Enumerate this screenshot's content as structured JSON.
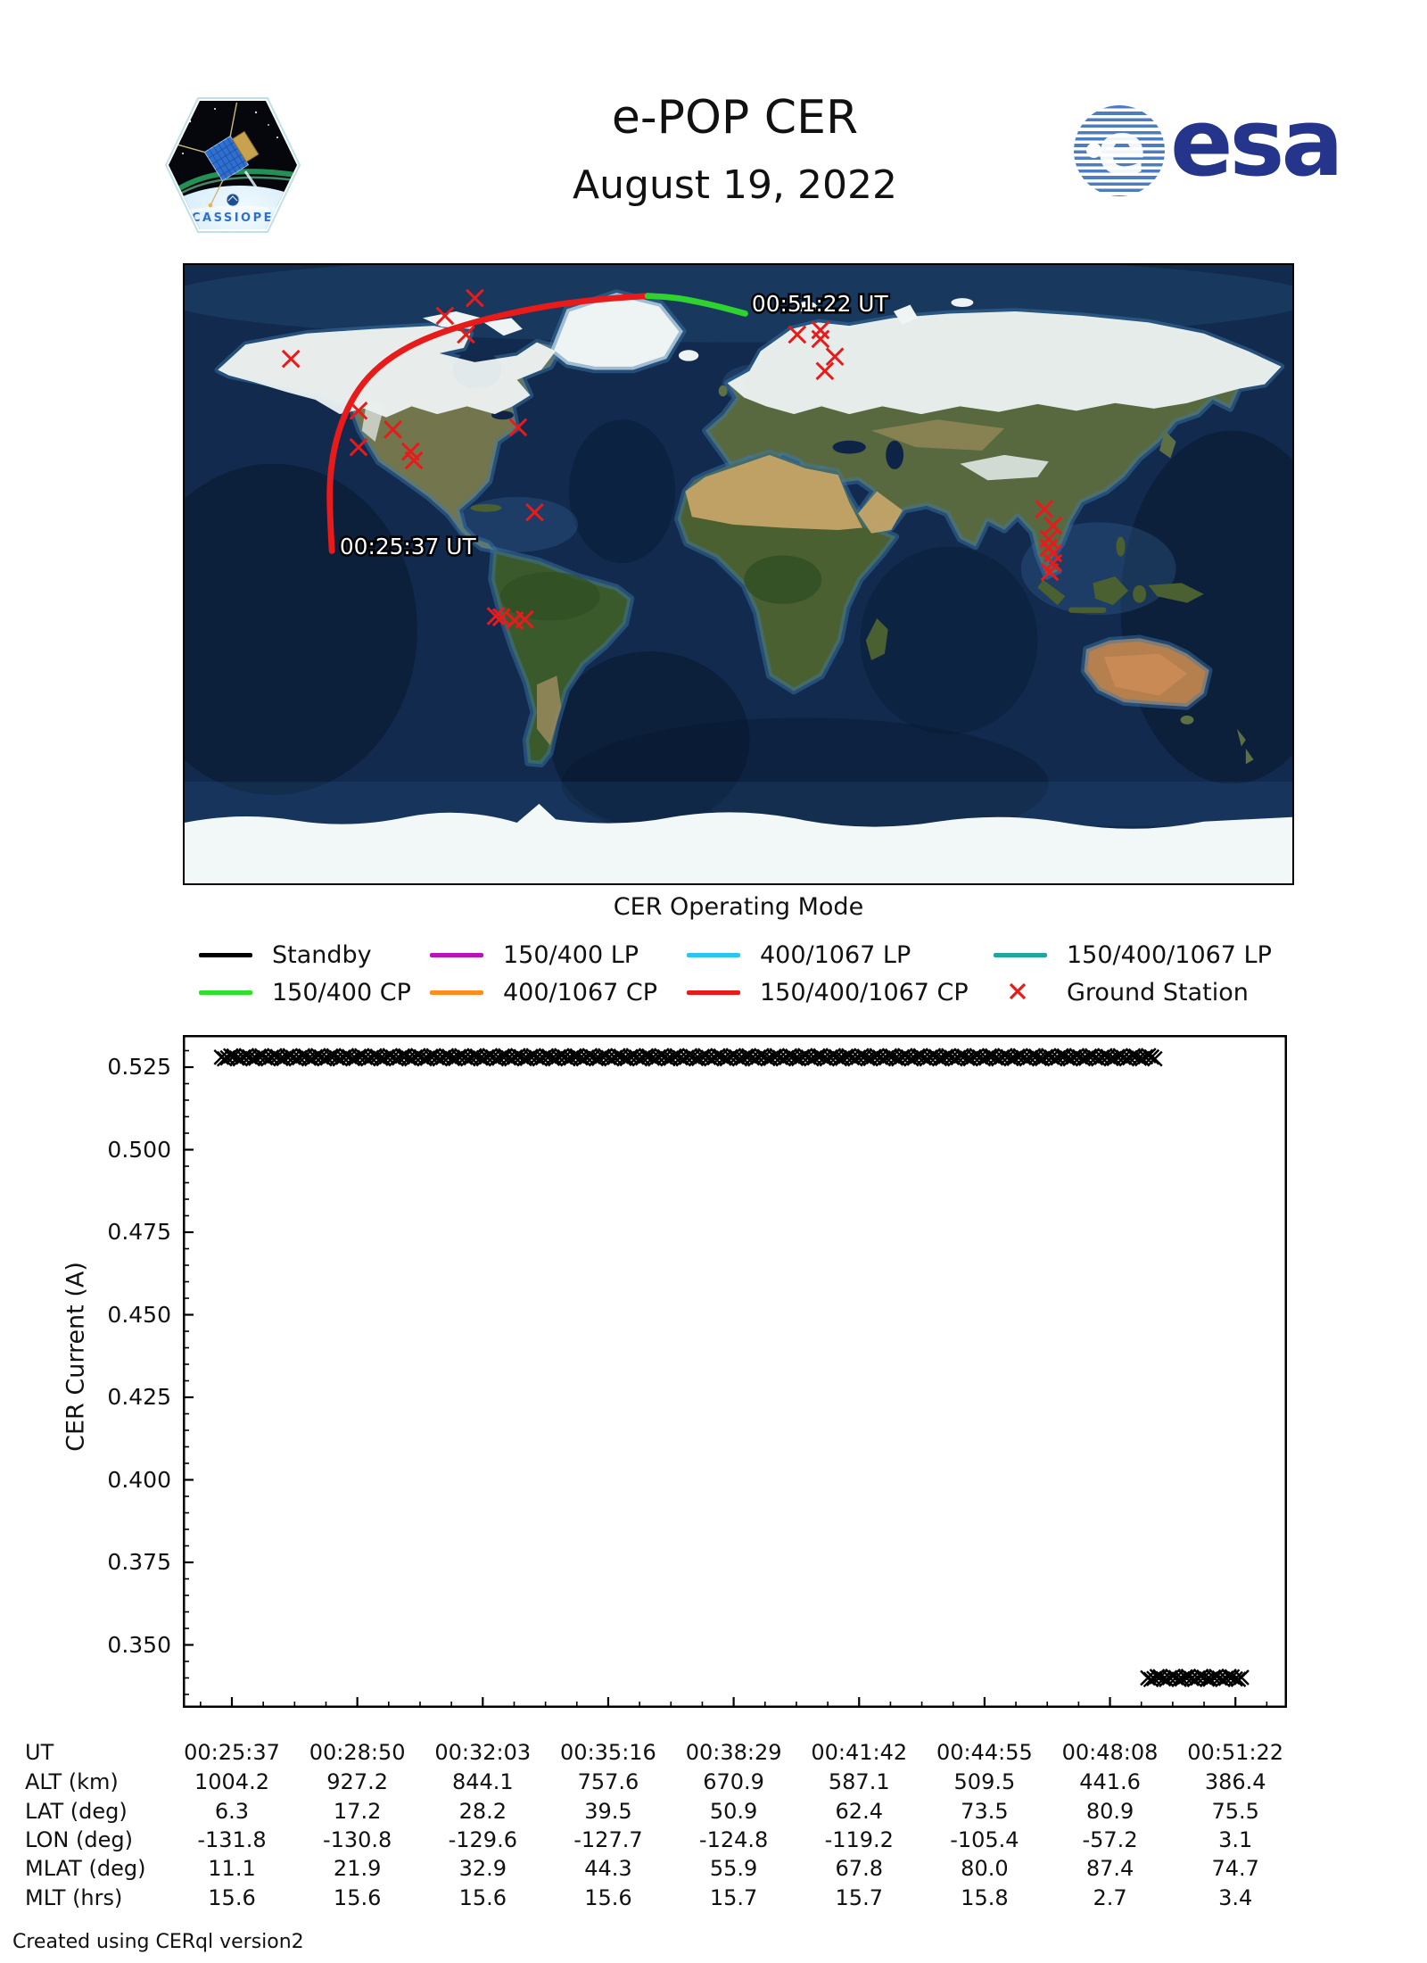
{
  "header": {
    "title": "e-POP CER",
    "date": "August 19, 2022",
    "esa_logo_text": "esa",
    "patch_text": "CASSIOPE"
  },
  "map": {
    "caption": "CER Operating Mode",
    "start_label": "00:25:37 UT",
    "end_label": "00:51:22 UT",
    "track_red_color": "#e81a1a",
    "track_green_color": "#2fd32f",
    "station_color": "#e81a1a",
    "track_red": [
      [
        133,
        259
      ],
      [
        131,
        225
      ],
      [
        131,
        192
      ],
      [
        136,
        160
      ],
      [
        146,
        131
      ],
      [
        161,
        106
      ],
      [
        182,
        86
      ],
      [
        209,
        70
      ],
      [
        243,
        57
      ],
      [
        283,
        46
      ],
      [
        327,
        37
      ],
      [
        373,
        31
      ],
      [
        418,
        28
      ]
    ],
    "track_green": [
      [
        418,
        28
      ],
      [
        440,
        29
      ],
      [
        462,
        33
      ],
      [
        484,
        38
      ],
      [
        506,
        44
      ]
    ],
    "start_label_anchor": [
      140,
      262
    ],
    "end_label_anchor": [
      512,
      42
    ],
    "ground_stations": [
      [
        96,
        85
      ],
      [
        157,
        132
      ],
      [
        188,
        149
      ],
      [
        157,
        165
      ],
      [
        204,
        169
      ],
      [
        207,
        177
      ],
      [
        301,
        147
      ],
      [
        316,
        224
      ],
      [
        281,
        318
      ],
      [
        286,
        319
      ],
      [
        298,
        322
      ],
      [
        307,
        321
      ],
      [
        262,
        30
      ],
      [
        235,
        46
      ],
      [
        254,
        63
      ],
      [
        553,
        63
      ],
      [
        574,
        59
      ],
      [
        574,
        67
      ],
      [
        587,
        83
      ],
      [
        578,
        96
      ],
      [
        776,
        221
      ],
      [
        784,
        236
      ],
      [
        780,
        248
      ],
      [
        780,
        256
      ],
      [
        784,
        261
      ],
      [
        784,
        270
      ],
      [
        781,
        278
      ]
    ]
  },
  "legend": {
    "items": [
      {
        "label": "Standby",
        "color": "#000000",
        "type": "line"
      },
      {
        "label": "150/400 LP",
        "color": "#b913b9",
        "type": "line"
      },
      {
        "label": "400/1067 LP",
        "color": "#29c6f0",
        "type": "line"
      },
      {
        "label": "150/400/1067 LP",
        "color": "#20a5a0",
        "type": "line"
      },
      {
        "label": "150/400 CP",
        "color": "#2ce02c",
        "type": "line"
      },
      {
        "label": "400/1067 CP",
        "color": "#ff8c1f",
        "type": "line"
      },
      {
        "label": "150/400/1067 CP",
        "color": "#e81a1a",
        "type": "line"
      },
      {
        "label": "Ground Station",
        "color": "#e81a1a",
        "type": "x"
      }
    ]
  },
  "chart_data": {
    "type": "scatter",
    "marker": "x",
    "marker_color": "#000000",
    "title": "",
    "xlabel": "",
    "ylabel": "CER Current (A)",
    "ylim": [
      0.331,
      0.5347
    ],
    "yticks": [
      0.35,
      0.375,
      0.4,
      0.425,
      0.45,
      0.475,
      0.5,
      0.525
    ],
    "ytick_labels": [
      "0.350",
      "0.375",
      "0.400",
      "0.425",
      "0.450",
      "0.475",
      "0.500",
      "0.525"
    ],
    "x_start": "00:25:37",
    "x_end": "00:51:22",
    "xticks": [
      "00:25:37",
      "00:28:50",
      "00:32:03",
      "00:35:16",
      "00:38:29",
      "00:41:42",
      "00:44:55",
      "00:48:08",
      "00:51:22"
    ],
    "series": [
      {
        "name": "Standby",
        "mode": "Standby",
        "ut_from": "00:25:37",
        "ut_to": "00:49:20",
        "current": 0.528,
        "x0": 0.035,
        "x1": 0.883
      },
      {
        "name": "Standby",
        "mode": "Standby",
        "ut_from": "00:49:20",
        "ut_to": "00:51:22",
        "current": 0.34,
        "x0": 0.874,
        "x1": 0.961
      }
    ]
  },
  "table": {
    "rows": [
      {
        "label": "UT",
        "values": [
          "00:25:37",
          "00:28:50",
          "00:32:03",
          "00:35:16",
          "00:38:29",
          "00:41:42",
          "00:44:55",
          "00:48:08",
          "00:51:22"
        ]
      },
      {
        "label": "ALT (km)",
        "values": [
          "1004.2",
          "927.2",
          "844.1",
          "757.6",
          "670.9",
          "587.1",
          "509.5",
          "441.6",
          "386.4"
        ]
      },
      {
        "label": "LAT (deg)",
        "values": [
          "6.3",
          "17.2",
          "28.2",
          "39.5",
          "50.9",
          "62.4",
          "73.5",
          "80.9",
          "75.5"
        ]
      },
      {
        "label": "LON (deg)",
        "values": [
          "-131.8",
          "-130.8",
          "-129.6",
          "-127.7",
          "-124.8",
          "-119.2",
          "-105.4",
          "-57.2",
          "3.1"
        ]
      },
      {
        "label": "MLAT (deg)",
        "values": [
          "11.1",
          "21.9",
          "32.9",
          "44.3",
          "55.9",
          "67.8",
          "80.0",
          "87.4",
          "74.7"
        ]
      },
      {
        "label": "MLT (hrs)",
        "values": [
          "15.6",
          "15.6",
          "15.6",
          "15.6",
          "15.7",
          "15.7",
          "15.8",
          "2.7",
          "3.4"
        ]
      }
    ]
  },
  "footer": {
    "credit": "Created using CERql version2"
  }
}
